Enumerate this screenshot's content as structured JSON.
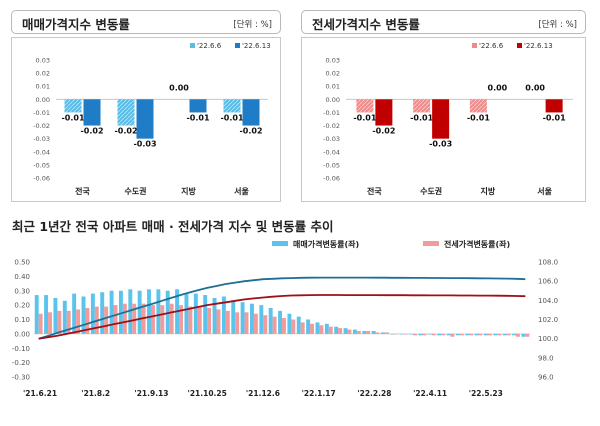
{
  "panels": {
    "left": {
      "title": "매매가격지수 변동률",
      "unit": "[단위 : %]"
    },
    "right": {
      "title": "전세가격지수 변동률",
      "unit": "[단위 : %]"
    }
  },
  "bottom": {
    "title": "최근 1년간 전국 아파트 매매 · 전세가격 지수 및 변동률 추이"
  },
  "colors": {
    "sale_prev": "#5bbde6",
    "sale_curr": "#1f7dc7",
    "jeonse_prev": "#ee8c8c",
    "jeonse_curr": "#c00000",
    "sale_line": "#1f6e96",
    "jeonse_line": "#9c1016",
    "sale_bar": "#5bc4ec",
    "jeonse_bar": "#f19c9c"
  },
  "chart_data": [
    {
      "type": "bar",
      "title": "매매가격지수 변동률",
      "categories": [
        "전국",
        "수도권",
        "지방",
        "서울"
      ],
      "series": [
        {
          "name": "'22.6.6",
          "values": [
            -0.01,
            -0.02,
            0.0,
            -0.01
          ]
        },
        {
          "name": "'22.6.13",
          "values": [
            -0.02,
            -0.03,
            -0.01,
            -0.02
          ]
        }
      ],
      "ylim": [
        -0.06,
        0.03
      ],
      "yticks": [
        "0.03",
        "0.02",
        "0.01",
        "0.00",
        "-0.01",
        "-0.02",
        "-0.03",
        "-0.04",
        "-0.05",
        "-0.06"
      ],
      "data_labels": [
        [
          "-0.01",
          "-0.02",
          "0.00",
          "-0.01"
        ],
        [
          "-0.02",
          "-0.03",
          "-0.01",
          "-0.02"
        ]
      ],
      "legend": "top-right"
    },
    {
      "type": "bar",
      "title": "전세가격지수 변동률",
      "categories": [
        "전국",
        "수도권",
        "지방",
        "서울"
      ],
      "series": [
        {
          "name": "'22.6.6",
          "values": [
            -0.01,
            -0.01,
            -0.01,
            0.0
          ]
        },
        {
          "name": "'22.6.13",
          "values": [
            -0.02,
            -0.03,
            0.0,
            -0.01
          ]
        }
      ],
      "ylim": [
        -0.06,
        0.03
      ],
      "yticks": [
        "0.03",
        "0.02",
        "0.01",
        "0.00",
        "-0.01",
        "-0.02",
        "-0.03",
        "-0.04",
        "-0.05",
        "-0.06"
      ],
      "data_labels": [
        [
          "-0.01",
          "-0.01",
          "-0.01",
          "0.00"
        ],
        [
          "-0.02",
          "-0.03",
          "0.00",
          "-0.01"
        ]
      ],
      "legend": "top-right"
    },
    {
      "type": "bar+line",
      "title": "최근 1년간 전국 아파트 매매 · 전세가격 지수 및 변동률 추이",
      "x_ticks": [
        "'21.6.21",
        "'21.8.2",
        "'21.9.13",
        "'21.10.25",
        "'21.12.6",
        "'22.1.17",
        "'22.2.28",
        "'22.4.11",
        "'22.5.23"
      ],
      "yticks_left": [
        "0.50",
        "0.40",
        "0.30",
        "0.20",
        "0.10",
        "0.00",
        "-0.10",
        "-0.20",
        "-0.30"
      ],
      "yticks_right": [
        "108.0",
        "106.0",
        "104.0",
        "102.0",
        "100.0",
        "98.0",
        "96.0"
      ],
      "ylim_left": [
        -0.3,
        0.5
      ],
      "ylim_right": [
        96,
        108
      ],
      "legend": [
        "매매가격변동률(좌)",
        "전세가격변동률(좌)"
      ],
      "series": [
        {
          "name": "매매가격변동률(좌)",
          "values": [
            0.27,
            0.27,
            0.25,
            0.23,
            0.28,
            0.26,
            0.28,
            0.29,
            0.3,
            0.3,
            0.31,
            0.3,
            0.31,
            0.31,
            0.3,
            0.31,
            0.28,
            0.28,
            0.27,
            0.25,
            0.26,
            0.23,
            0.22,
            0.21,
            0.2,
            0.18,
            0.16,
            0.14,
            0.12,
            0.1,
            0.08,
            0.07,
            0.05,
            0.04,
            0.03,
            0.02,
            0.02,
            0.01,
            0.0,
            0.0,
            0.0,
            -0.01,
            0.0,
            -0.01,
            -0.01,
            -0.01,
            -0.01,
            -0.01,
            -0.01,
            -0.01,
            -0.01,
            -0.01,
            -0.02
          ]
        },
        {
          "name": "전세가격변동률(좌)",
          "values": [
            0.14,
            0.15,
            0.16,
            0.16,
            0.17,
            0.18,
            0.19,
            0.19,
            0.2,
            0.21,
            0.21,
            0.21,
            0.2,
            0.2,
            0.21,
            0.2,
            0.19,
            0.19,
            0.18,
            0.17,
            0.16,
            0.15,
            0.15,
            0.14,
            0.13,
            0.12,
            0.11,
            0.1,
            0.08,
            0.07,
            0.06,
            0.05,
            0.04,
            0.03,
            0.02,
            0.02,
            0.01,
            0.01,
            0.0,
            0.0,
            -0.01,
            -0.01,
            -0.01,
            -0.01,
            -0.02,
            -0.01,
            -0.01,
            -0.01,
            -0.01,
            -0.01,
            -0.01,
            -0.02,
            -0.02
          ]
        },
        {
          "name": "sale_index",
          "axis": "right",
          "values": [
            100.0,
            100.3,
            100.6,
            100.9,
            101.2,
            101.5,
            101.8,
            102.1,
            102.4,
            102.7,
            103.0,
            103.3,
            103.6,
            103.9,
            104.2,
            104.5,
            104.8,
            105.05,
            105.3,
            105.5,
            105.7,
            105.85,
            106.0,
            106.1,
            106.2,
            106.25,
            106.3,
            106.32,
            106.35,
            106.36,
            106.37,
            106.37,
            106.37,
            106.37,
            106.37,
            106.37,
            106.36,
            106.36,
            106.35,
            106.35,
            106.34,
            106.34,
            106.33,
            106.33,
            106.32,
            106.32,
            106.31,
            106.3,
            106.29,
            106.28,
            106.27,
            106.25,
            106.2
          ]
        },
        {
          "name": "jeonse_index",
          "axis": "right",
          "values": [
            100.0,
            100.15,
            100.3,
            100.5,
            100.7,
            100.9,
            101.1,
            101.3,
            101.5,
            101.7,
            101.9,
            102.1,
            102.3,
            102.5,
            102.7,
            102.9,
            103.1,
            103.3,
            103.5,
            103.65,
            103.8,
            103.95,
            104.1,
            104.2,
            104.3,
            104.38,
            104.45,
            104.5,
            104.53,
            104.55,
            104.56,
            104.56,
            104.56,
            104.55,
            104.55,
            104.55,
            104.55,
            104.54,
            104.54,
            104.54,
            104.53,
            104.53,
            104.52,
            104.52,
            104.51,
            104.5,
            104.5,
            104.49,
            104.49,
            104.48,
            104.47,
            104.45,
            104.43
          ]
        }
      ]
    }
  ]
}
